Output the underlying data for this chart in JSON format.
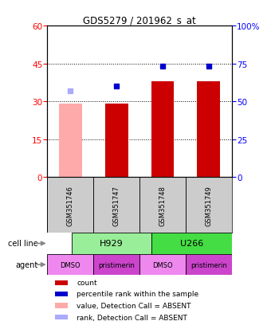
{
  "title": "GDS5279 / 201962_s_at",
  "samples": [
    "GSM351746",
    "GSM351747",
    "GSM351748",
    "GSM351749"
  ],
  "count_values": [
    29,
    29,
    38,
    38
  ],
  "count_absent": [
    true,
    false,
    false,
    false
  ],
  "rank_values": [
    57,
    60,
    73,
    73
  ],
  "rank_absent": [
    true,
    false,
    false,
    false
  ],
  "ylim_left": [
    0,
    60
  ],
  "ylim_right": [
    0,
    100
  ],
  "yticks_left": [
    0,
    15,
    30,
    45,
    60
  ],
  "yticks_right": [
    0,
    25,
    50,
    75,
    100
  ],
  "yticklabels_right": [
    "0",
    "25",
    "50",
    "75",
    "100%"
  ],
  "bar_color_present": "#cc0000",
  "bar_color_absent": "#ffaaaa",
  "dot_color_present": "#0000cc",
  "dot_color_absent": "#aaaaff",
  "sample_box_color": "#cccccc",
  "cell_line_groups": [
    {
      "label": "H929",
      "color": "#99ee99",
      "span": [
        0,
        2
      ]
    },
    {
      "label": "U266",
      "color": "#44dd44",
      "span": [
        2,
        4
      ]
    }
  ],
  "agent_groups": [
    {
      "label": "DMSO",
      "color": "#ee88ee",
      "span": [
        0,
        1
      ]
    },
    {
      "label": "pristimerin",
      "color": "#cc44cc",
      "span": [
        1,
        2
      ]
    },
    {
      "label": "DMSO",
      "color": "#ee88ee",
      "span": [
        2,
        3
      ]
    },
    {
      "label": "pristimerin",
      "color": "#cc44cc",
      "span": [
        3,
        4
      ]
    }
  ],
  "legend_items": [
    {
      "color": "#cc0000",
      "label": "count"
    },
    {
      "color": "#0000cc",
      "label": "percentile rank within the sample"
    },
    {
      "color": "#ffaaaa",
      "label": "value, Detection Call = ABSENT"
    },
    {
      "color": "#aaaaff",
      "label": "rank, Detection Call = ABSENT"
    }
  ]
}
